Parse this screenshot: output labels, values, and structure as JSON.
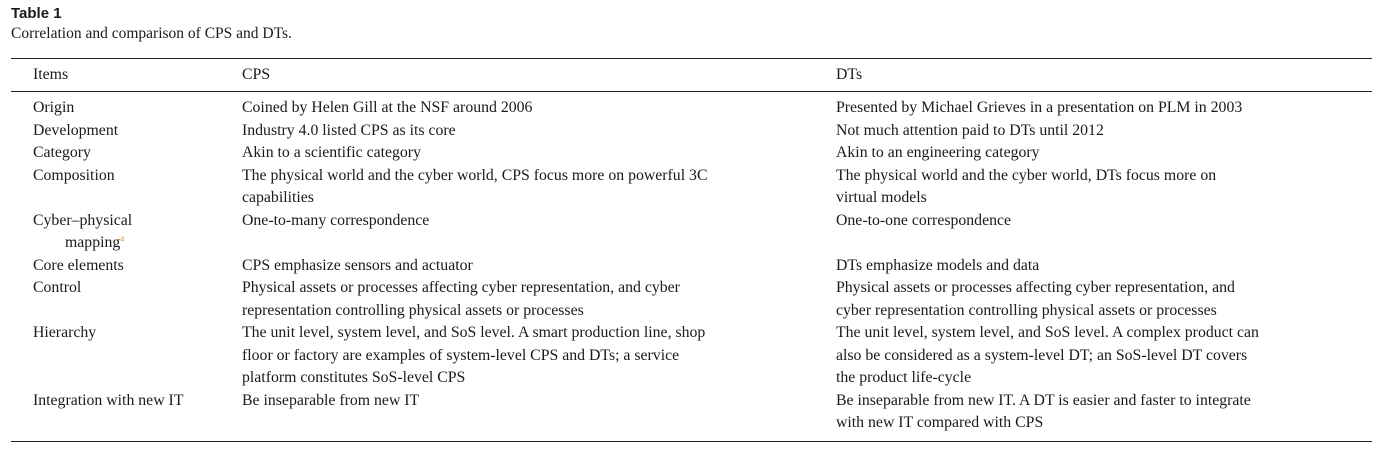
{
  "table": {
    "label": "Table 1",
    "caption": "Correlation and comparison of CPS and DTs.",
    "headers": [
      "Items",
      "CPS",
      "DTs"
    ],
    "rows": [
      {
        "item": [
          "Origin"
        ],
        "cps": [
          "Coined by Helen Gill at the NSF around 2006"
        ],
        "dts": [
          "Presented by Michael Grieves in a presentation on PLM in 2003"
        ]
      },
      {
        "item": [
          "Development"
        ],
        "cps": [
          "Industry 4.0 listed CPS as its core"
        ],
        "dts": [
          "Not much attention paid to DTs until 2012"
        ]
      },
      {
        "item": [
          "Category"
        ],
        "cps": [
          "Akin to a scientific category"
        ],
        "dts": [
          "Akin to an engineering category"
        ]
      },
      {
        "item": [
          "Composition"
        ],
        "cps": [
          "The physical world and the cyber world, CPS focus more on powerful 3C",
          "capabilities"
        ],
        "dts": [
          "The physical world and the cyber world, DTs focus more on",
          "virtual models"
        ]
      },
      {
        "item": [
          "Cyber–physical",
          "mapping"
        ],
        "item_footnote": "a",
        "cps": [
          "One-to-many correspondence"
        ],
        "dts": [
          "One-to-one correspondence"
        ]
      },
      {
        "item": [
          "Core elements"
        ],
        "cps": [
          "CPS emphasize sensors and actuator"
        ],
        "dts": [
          "DTs emphasize models and data"
        ]
      },
      {
        "item": [
          "Control"
        ],
        "cps": [
          "Physical assets or processes affecting cyber representation, and cyber",
          "representation controlling physical assets or processes"
        ],
        "dts": [
          "Physical assets or processes affecting cyber representation, and",
          "cyber representation controlling physical assets or processes"
        ]
      },
      {
        "item": [
          "Hierarchy"
        ],
        "cps": [
          "The unit level, system level, and SoS level. A smart production line, shop",
          "floor or factory are examples of system-level CPS and DTs; a service",
          "platform constitutes SoS-level CPS"
        ],
        "dts": [
          "The unit level, system level, and SoS level. A complex product can",
          "also be considered as a system-level DT; an SoS-level DT covers",
          "the product life-cycle"
        ]
      },
      {
        "item": [
          "Integration with new IT"
        ],
        "cps": [
          "Be inseparable from new IT"
        ],
        "dts": [
          "Be inseparable from new IT. A DT is easier and faster to integrate",
          "with new IT compared with CPS"
        ]
      }
    ]
  },
  "colors": {
    "text": "#1a1a1a",
    "rule": "#222222",
    "footnote_marker": "#f08a24"
  }
}
